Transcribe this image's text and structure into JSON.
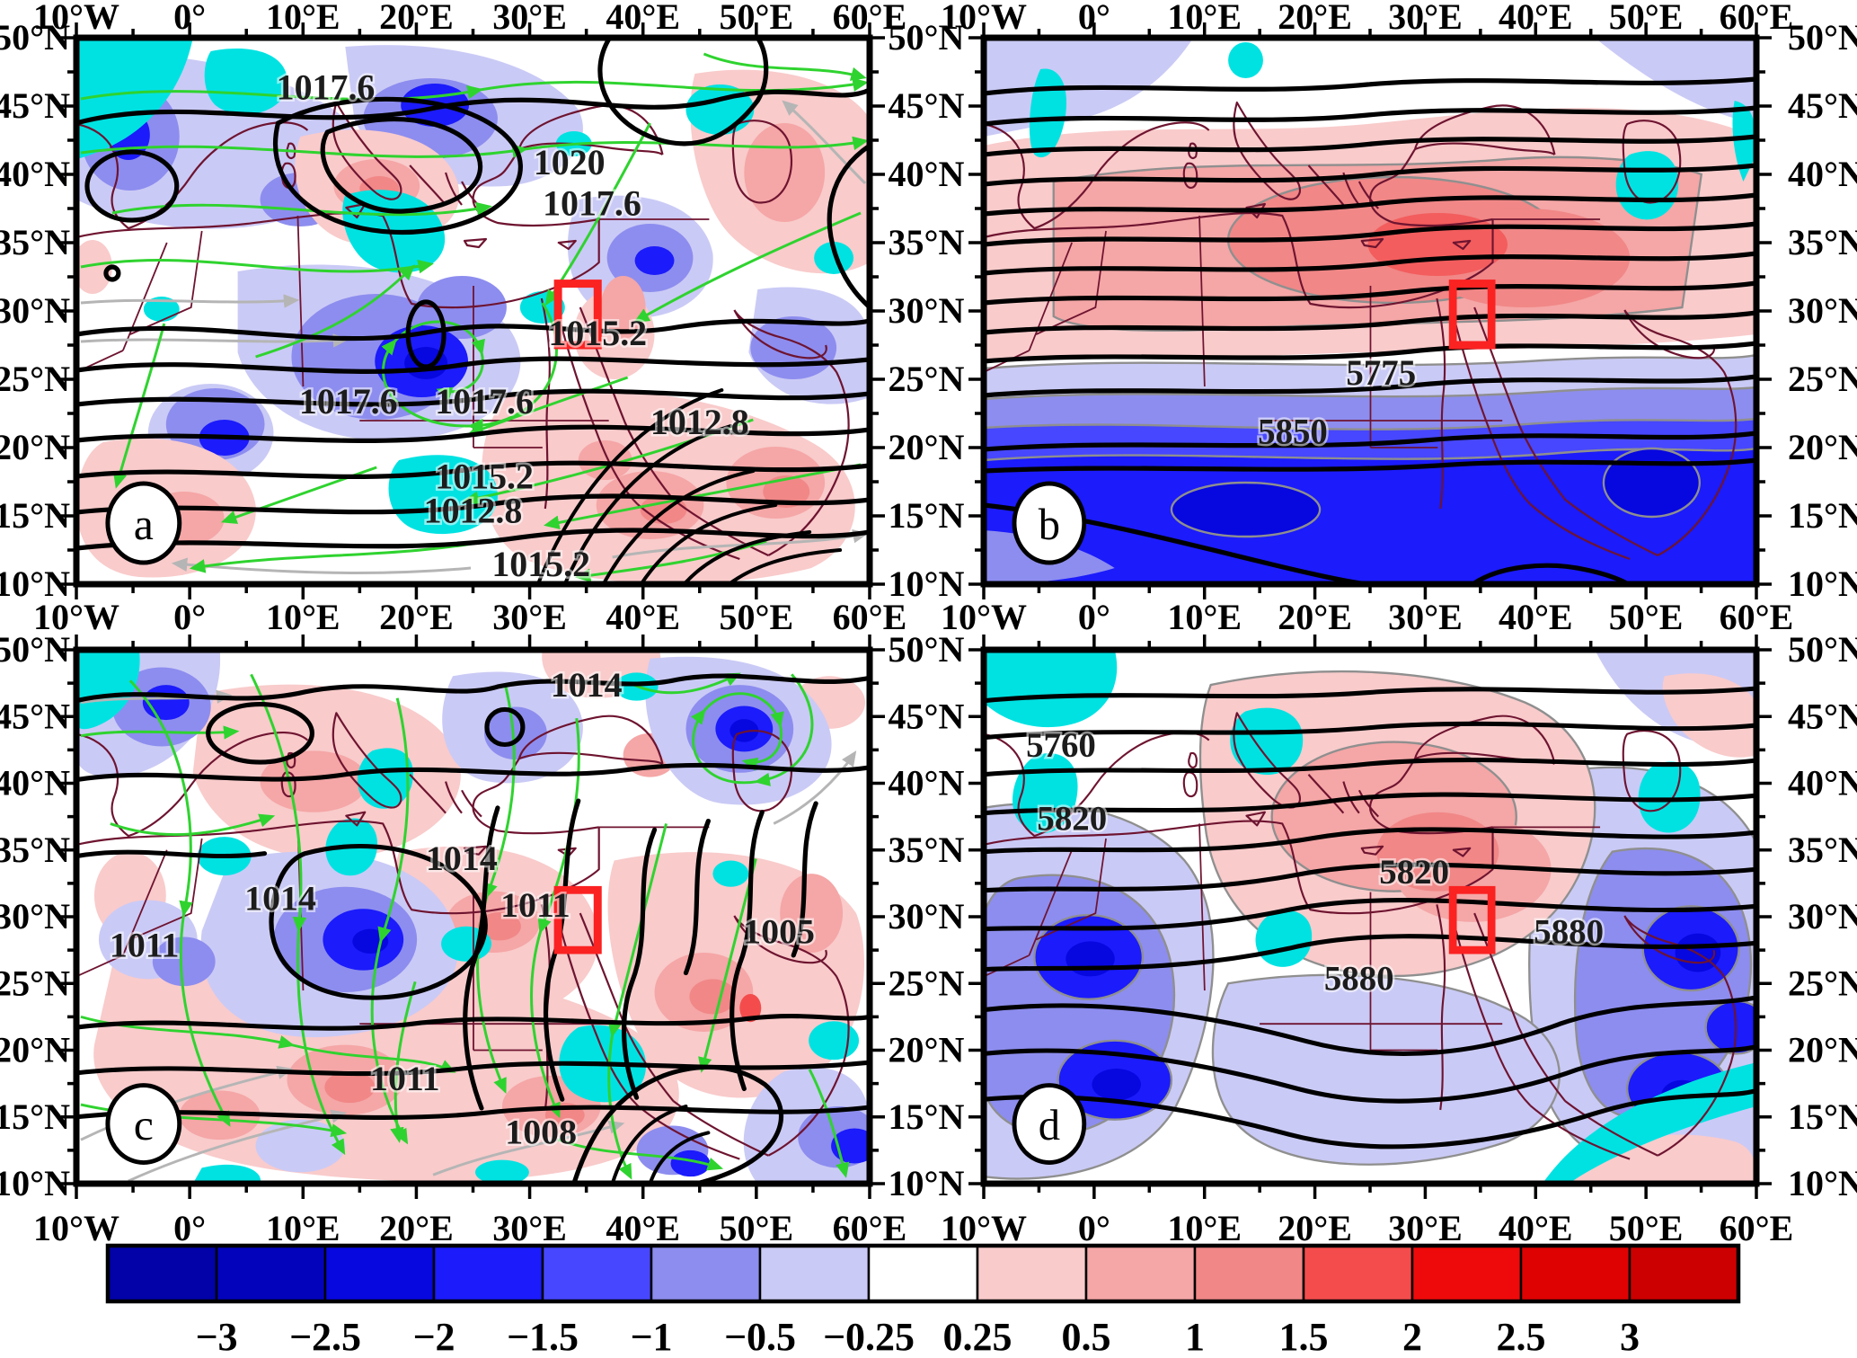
{
  "chart_data": {
    "type": "map-contour",
    "figure_type": "four-panel meteorological composite maps with anomaly shading, contours and a shared diverging colorbar",
    "axes": {
      "lon_range": [
        -10,
        60
      ],
      "lat_range": [
        10,
        50
      ],
      "lon_ticks": [
        {
          "deg": -10,
          "label": "10°W"
        },
        {
          "deg": 0,
          "label": "0°"
        },
        {
          "deg": 10,
          "label": "10°E"
        },
        {
          "deg": 20,
          "label": "20°E"
        },
        {
          "deg": 30,
          "label": "30°E"
        },
        {
          "deg": 40,
          "label": "40°E"
        },
        {
          "deg": 50,
          "label": "50°E"
        },
        {
          "deg": 60,
          "label": "60°E"
        }
      ],
      "lat_ticks": [
        {
          "deg": 50,
          "label": "50°N"
        },
        {
          "deg": 45,
          "label": "45°N"
        },
        {
          "deg": 40,
          "label": "40°N"
        },
        {
          "deg": 35,
          "label": "35°N"
        },
        {
          "deg": 30,
          "label": "30°N"
        },
        {
          "deg": 25,
          "label": "25°N"
        },
        {
          "deg": 20,
          "label": "20°N"
        },
        {
          "deg": 15,
          "label": "15°N"
        }
      ],
      "lat_bottom_label": "10°N",
      "minor_lon_step_deg": 5,
      "minor_lat_step_deg": 2.5,
      "grid": false
    },
    "panels": [
      {
        "id": "a",
        "label": "a",
        "position": "top-left",
        "content": "sea-level-pressure contours (hPa) with green wind streamlines and shaded anomalies",
        "contour_label_values": [
          1012.8,
          1015.2,
          1017.6,
          1020
        ],
        "contour_labels": [
          {
            "v": "1017.6",
            "lon": 12,
            "lat": 45.5
          },
          {
            "v": "1020",
            "lon": 33.5,
            "lat": 40
          },
          {
            "v": "1017.6",
            "lon": 35.5,
            "lat": 37
          },
          {
            "v": "1015.2",
            "lon": 36,
            "lat": 27.5
          },
          {
            "v": "1017.6",
            "lon": 14,
            "lat": 22.5
          },
          {
            "v": "1017.6",
            "lon": 26,
            "lat": 22.5
          },
          {
            "v": "1015.2",
            "lon": 26,
            "lat": 17
          },
          {
            "v": "1012.8",
            "lon": 45,
            "lat": 21
          },
          {
            "v": "1012.8",
            "lon": 25,
            "lat": 14.5
          },
          {
            "v": "1015.2",
            "lon": 31,
            "lat": 10.6
          }
        ],
        "overlays": [
          "green streamlines with arrows",
          "gray streamlines",
          "red study-area box"
        ],
        "shading_summary": "blue negative anomalies over NW Africa, central Mediterranean low and northern Europe; pink positive anomalies over Italy/Balkans, Arabia and southern edge; cyan patches scattered"
      },
      {
        "id": "b",
        "label": "b",
        "position": "top-right",
        "content": "geopotential-height contours (gpm) with shaded anomalies",
        "contour_label_values": [
          5775,
          5850
        ],
        "contour_labels": [
          {
            "v": "5775",
            "lon": 26,
            "lat": 24.6
          },
          {
            "v": "5850",
            "lon": 18,
            "lat": 20.3
          }
        ],
        "overlays": [
          "red study-area box"
        ],
        "shading_summary": "broad pink positive anomaly across Europe/Mediterranean, white band near 25N, deep blue negative band across the Sahel, cyan patches NW Iberia, Caspian and Nile"
      },
      {
        "id": "c",
        "label": "c",
        "position": "bottom-left",
        "content": "sea-level-pressure contours (hPa) with green wind streamlines and shaded anomalies",
        "contour_label_values": [
          1005,
          1008,
          1011,
          1014
        ],
        "contour_labels": [
          {
            "v": "1014",
            "lon": 35,
            "lat": 46.5
          },
          {
            "v": "1014",
            "lon": 24,
            "lat": 33.5
          },
          {
            "v": "1011",
            "lon": 30.5,
            "lat": 30
          },
          {
            "v": "1014",
            "lon": 8,
            "lat": 30.5
          },
          {
            "v": "1011",
            "lon": -4,
            "lat": 27
          },
          {
            "v": "1005",
            "lon": 52,
            "lat": 28
          },
          {
            "v": "1011",
            "lon": 19,
            "lat": 17
          },
          {
            "v": "1008",
            "lon": 31,
            "lat": 13
          }
        ],
        "overlays": [
          "green streamlines with arrows",
          "gray streamlines",
          "red study-area box"
        ],
        "shading_summary": "widespread pink positive anomalies, blue negative cells over central Sahara and NE Europe cyclone spiral, cyan patches along flow"
      },
      {
        "id": "d",
        "label": "d",
        "position": "bottom-right",
        "content": "geopotential-height contours (gpm) with shaded anomalies",
        "contour_label_values": [
          5760,
          5820,
          5880
        ],
        "contour_labels": [
          {
            "v": "5760",
            "lon": -3,
            "lat": 42
          },
          {
            "v": "5820",
            "lon": -2,
            "lat": 36.5
          },
          {
            "v": "5820",
            "lon": 29,
            "lat": 32.5
          },
          {
            "v": "5880",
            "lon": 43,
            "lat": 28
          },
          {
            "v": "5880",
            "lon": 24,
            "lat": 24.5
          }
        ],
        "overlays": [
          "red study-area box"
        ],
        "shading_summary": "pink positive ridge anomaly over Anatolia/Balkans, deep blue negative cells west (Morocco/Algeria) and east (Arabia), cyan band SE corner and NW patches"
      }
    ],
    "red_box": {
      "lon_min": 32.5,
      "lon_max": 36,
      "lat_min": 27.5,
      "lat_max": 32
    },
    "colorbar": {
      "orientation": "horizontal",
      "boundaries": [
        -3,
        -2.5,
        -2,
        -1.5,
        -1,
        -0.5,
        -0.25,
        0.25,
        0.5,
        1,
        1.5,
        2,
        2.5,
        3
      ],
      "labels": [
        "−3",
        "−2.5",
        "−2",
        "−1.5",
        "−1",
        "−0.5",
        "−0.25",
        "0.25",
        "0.5",
        "1",
        "1.5",
        "2",
        "2.5",
        "3"
      ],
      "colors": [
        "#0202A8",
        "#0303BC",
        "#0707E0",
        "#1B1BFB",
        "#4747FF",
        "#8D8DEF",
        "#CACAF6",
        "#FFFFFF",
        "#F9CBCB",
        "#F5A6A6",
        "#F18787",
        "#F44C4C",
        "#EE0A0A",
        "#DE0202",
        "#CC0000"
      ]
    },
    "accent_colors": {
      "study_box": "#FB2222",
      "streamlines": "#2FD32F",
      "streamlines_secondary": "#B5B5B5",
      "coastlines": "#6E1430",
      "contours": "#000000",
      "shading_outline": "#8F8F8F",
      "cyan_shade": "#00E2E2"
    }
  }
}
